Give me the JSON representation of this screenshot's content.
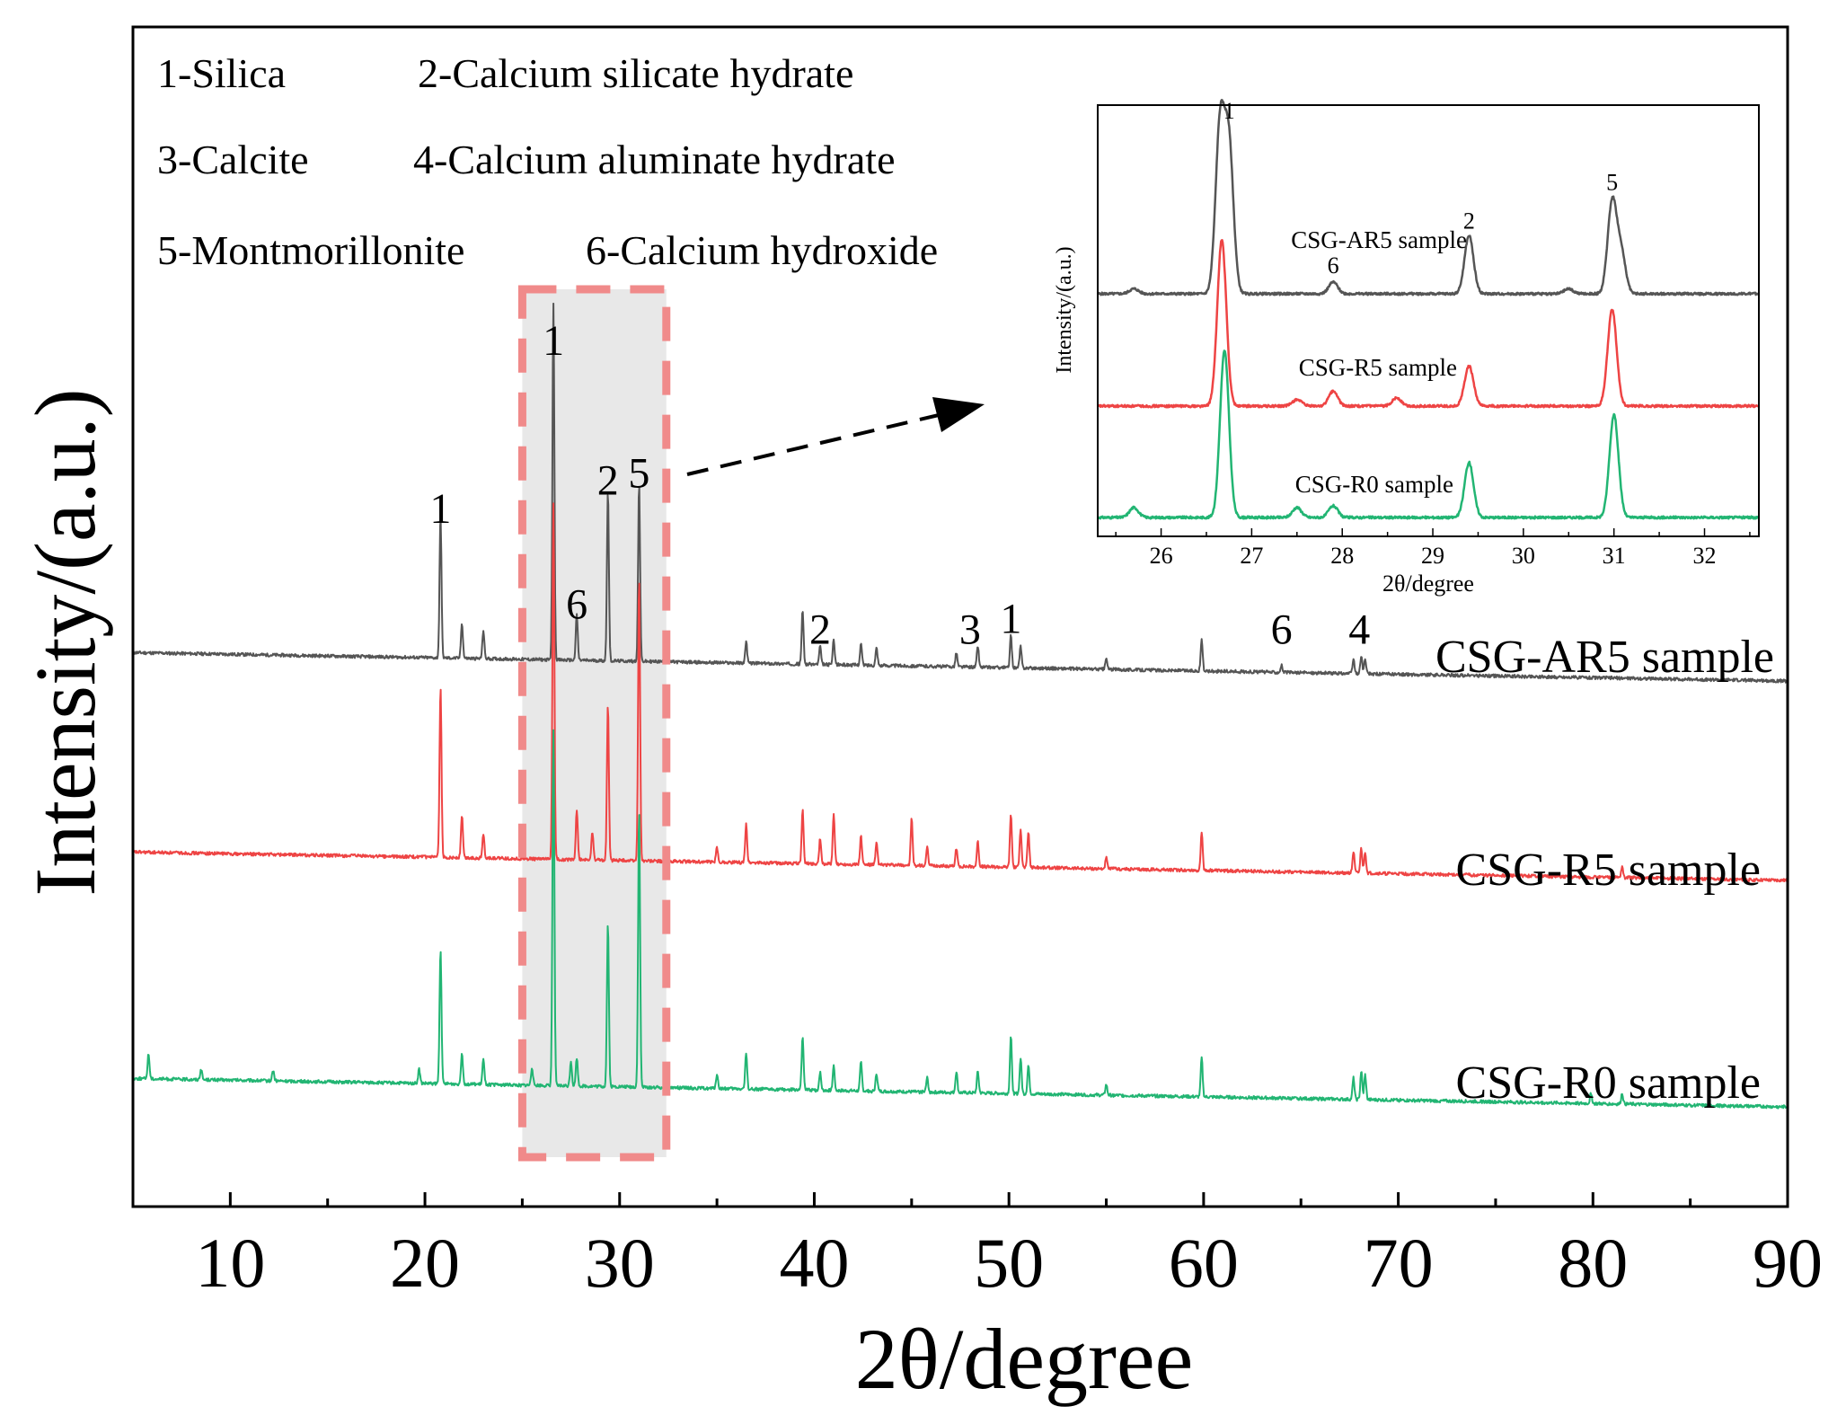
{
  "chart_data": {
    "type": "line",
    "title": "",
    "xlabel": "2θ/degree",
    "ylabel": "Intensity/(a.u.)",
    "xlim": [
      5,
      90
    ],
    "xticks": [
      10,
      20,
      30,
      40,
      50,
      60,
      70,
      80,
      90
    ],
    "legend_keys": [
      "1-Silica",
      "2-Calcium silicate hydrate",
      "3-Calcite",
      "4-Calcium aluminate hydrate",
      "5-Montmorillonite",
      "6-Calcium hydroxide"
    ],
    "series": [
      {
        "name": "CSG-AR5 sample",
        "color": "#555555",
        "baseline_start": 8,
        "baseline_end": 0,
        "peaks": [
          [
            20.8,
            40
          ],
          [
            21.9,
            10
          ],
          [
            23.0,
            8
          ],
          [
            26.6,
            100
          ],
          [
            27.8,
            13
          ],
          [
            29.4,
            48
          ],
          [
            31.0,
            50
          ],
          [
            36.5,
            6
          ],
          [
            39.4,
            15
          ],
          [
            40.3,
            5
          ],
          [
            41.0,
            7
          ],
          [
            42.4,
            6
          ],
          [
            43.2,
            5
          ],
          [
            47.3,
            4
          ],
          [
            48.4,
            6
          ],
          [
            50.1,
            9
          ],
          [
            50.6,
            6
          ],
          [
            55.0,
            3
          ],
          [
            59.9,
            9
          ],
          [
            64.0,
            2
          ],
          [
            67.7,
            4
          ],
          [
            68.1,
            5
          ],
          [
            68.3,
            4
          ]
        ],
        "labels": [
          {
            "text": "1",
            "x": 20.8
          },
          {
            "text": "1",
            "x": 26.6
          },
          {
            "text": "6",
            "x": 27.8
          },
          {
            "text": "2",
            "x": 29.4
          },
          {
            "text": "5",
            "x": 31.0
          },
          {
            "text": "2",
            "x": 40.3
          },
          {
            "text": "3",
            "x": 48.0
          },
          {
            "text": "1",
            "x": 50.1
          },
          {
            "text": "6",
            "x": 64.0
          },
          {
            "text": "4",
            "x": 68.0
          }
        ]
      },
      {
        "name": "CSG-R5 sample",
        "color": "#ee4444",
        "baseline_start": 8,
        "baseline_end": 0,
        "peaks": [
          [
            20.8,
            48
          ],
          [
            21.9,
            12
          ],
          [
            23.0,
            7
          ],
          [
            26.6,
            100
          ],
          [
            27.8,
            14
          ],
          [
            28.6,
            8
          ],
          [
            29.4,
            44
          ],
          [
            31.0,
            80
          ],
          [
            35.0,
            4
          ],
          [
            36.5,
            11
          ],
          [
            39.4,
            15
          ],
          [
            40.3,
            7
          ],
          [
            41.0,
            14
          ],
          [
            42.4,
            8
          ],
          [
            43.2,
            6
          ],
          [
            45.0,
            13
          ],
          [
            45.8,
            5
          ],
          [
            47.3,
            5
          ],
          [
            48.4,
            7
          ],
          [
            50.1,
            15
          ],
          [
            50.6,
            11
          ],
          [
            51.0,
            10
          ],
          [
            55.0,
            3
          ],
          [
            59.9,
            11
          ],
          [
            67.7,
            6
          ],
          [
            68.1,
            7
          ],
          [
            68.3,
            6
          ],
          [
            81.5,
            3
          ]
        ],
        "labels": []
      },
      {
        "name": "CSG-R0 sample",
        "color": "#22b573",
        "baseline_start": 8,
        "baseline_end": 0,
        "peaks": [
          [
            5.8,
            7
          ],
          [
            8.5,
            3
          ],
          [
            12.2,
            3
          ],
          [
            19.7,
            4
          ],
          [
            20.8,
            38
          ],
          [
            21.9,
            9
          ],
          [
            23.0,
            7
          ],
          [
            25.5,
            5
          ],
          [
            26.6,
            100
          ],
          [
            27.5,
            7
          ],
          [
            27.8,
            8
          ],
          [
            29.4,
            46
          ],
          [
            31.0,
            78
          ],
          [
            35.0,
            4
          ],
          [
            36.5,
            10
          ],
          [
            39.4,
            15
          ],
          [
            40.3,
            5
          ],
          [
            41.0,
            7
          ],
          [
            42.4,
            8
          ],
          [
            43.2,
            5
          ],
          [
            45.8,
            4
          ],
          [
            47.3,
            6
          ],
          [
            48.4,
            6
          ],
          [
            50.1,
            16
          ],
          [
            50.6,
            10
          ],
          [
            51.0,
            8
          ],
          [
            55.0,
            3
          ],
          [
            59.9,
            11
          ],
          [
            67.7,
            6
          ],
          [
            68.1,
            8
          ],
          [
            68.3,
            7
          ],
          [
            79.9,
            3
          ],
          [
            81.5,
            3
          ]
        ],
        "labels": []
      }
    ],
    "highlight_box": {
      "x_start": 25.0,
      "x_end": 32.4
    },
    "inset": {
      "xlabel": "2θ/degree",
      "ylabel": "Intensity/(a.u.)",
      "xlim": [
        25.3,
        32.6
      ],
      "xticks": [
        26,
        27,
        28,
        29,
        30,
        31,
        32
      ],
      "series": [
        {
          "name": "CSG-AR5 sample",
          "peaks": [
            [
              25.7,
              3
            ],
            [
              26.65,
              100
            ],
            [
              26.75,
              88
            ],
            [
              27.9,
              7
            ],
            [
              29.4,
              35
            ],
            [
              30.5,
              3
            ],
            [
              30.98,
              55
            ],
            [
              31.08,
              24
            ]
          ],
          "labels": [
            {
              "text": "1",
              "x": 26.75
            },
            {
              "text": "6",
              "x": 27.9
            },
            {
              "text": "2",
              "x": 29.4
            },
            {
              "text": "5",
              "x": 30.98
            }
          ]
        },
        {
          "name": "CSG-R5 sample",
          "peaks": [
            [
              26.67,
              100
            ],
            [
              27.5,
              4
            ],
            [
              27.9,
              9
            ],
            [
              28.6,
              5
            ],
            [
              29.4,
              24
            ],
            [
              30.98,
              58
            ]
          ],
          "labels": []
        },
        {
          "name": "CSG-R0 sample",
          "peaks": [
            [
              25.7,
              6
            ],
            [
              26.7,
              100
            ],
            [
              27.5,
              6
            ],
            [
              27.9,
              7
            ],
            [
              29.4,
              33
            ],
            [
              31.0,
              62
            ]
          ],
          "labels": []
        }
      ]
    }
  }
}
